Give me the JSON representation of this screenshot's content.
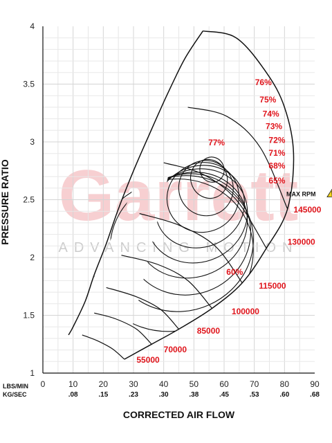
{
  "chart_data": {
    "type": "compressor_map",
    "xlabel": "CORRECTED AIR FLOW",
    "ylabel": "PRESSURE RATIO",
    "xlim": [
      0,
      90
    ],
    "ylim": [
      1,
      4
    ],
    "x_ticks_lbs_min": [
      "0",
      "10",
      "20",
      "30",
      "40",
      "50",
      "60",
      "70",
      "80",
      "90"
    ],
    "x_ticks_kg_sec": [
      ".08",
      ".15",
      ".23",
      ".30",
      ".38",
      ".45",
      ".53",
      ".60",
      ".68"
    ],
    "y_ticks": [
      "1",
      "1.5",
      "2",
      "2.5",
      "3",
      "3.5",
      "4"
    ],
    "unit_primary": "LBS/MIN",
    "unit_secondary": "KG/SEC",
    "watermark": {
      "brand": "Garrett",
      "tagline": "ADVANCING MOTION"
    },
    "max_rpm_label": "MAX RPM",
    "grid": true,
    "surge_line": [
      [
        8.5,
        1.33
      ],
      [
        10,
        1.4
      ],
      [
        14,
        1.62
      ],
      [
        17,
        1.85
      ],
      [
        21,
        2.12
      ],
      [
        25,
        2.42
      ],
      [
        30,
        2.75
      ],
      [
        35,
        3.05
      ],
      [
        41,
        3.4
      ],
      [
        47,
        3.72
      ],
      [
        53,
        3.96
      ]
    ],
    "speed_lines": [
      {
        "rpm": 55000,
        "label": "55000",
        "points": [
          [
            13,
            1.33
          ],
          [
            18,
            1.28
          ],
          [
            23,
            1.21
          ],
          [
            27,
            1.12
          ]
        ]
      },
      {
        "rpm": 70000,
        "label": "70000",
        "points": [
          [
            17,
            1.52
          ],
          [
            24,
            1.47
          ],
          [
            31,
            1.38
          ],
          [
            36,
            1.25
          ]
        ]
      },
      {
        "rpm": 85000,
        "label": "85000",
        "points": [
          [
            21,
            1.74
          ],
          [
            31,
            1.66
          ],
          [
            39,
            1.55
          ],
          [
            45,
            1.38
          ]
        ]
      },
      {
        "rpm": 100000,
        "label": "100000",
        "points": [
          [
            26,
            2.02
          ],
          [
            38,
            1.94
          ],
          [
            48,
            1.8
          ],
          [
            56,
            1.56
          ]
        ]
      },
      {
        "rpm": 115000,
        "label": "115000",
        "points": [
          [
            32,
            2.38
          ],
          [
            45,
            2.28
          ],
          [
            57,
            2.1
          ],
          [
            66,
            1.78
          ]
        ]
      },
      {
        "rpm": 130000,
        "label": "130000",
        "points": [
          [
            40,
            2.82
          ],
          [
            53,
            2.72
          ],
          [
            64,
            2.5
          ],
          [
            74,
            2.08
          ]
        ]
      },
      {
        "rpm": 145000,
        "label": "145000",
        "points": [
          [
            48,
            3.3
          ],
          [
            61,
            3.22
          ],
          [
            72,
            2.95
          ],
          [
            81,
            2.42
          ]
        ]
      }
    ],
    "choke_line": [
      [
        27,
        1.12
      ],
      [
        36,
        1.25
      ],
      [
        45,
        1.38
      ],
      [
        56,
        1.56
      ],
      [
        66,
        1.78
      ],
      [
        74,
        2.08
      ],
      [
        81,
        2.42
      ],
      [
        83,
        2.9
      ],
      [
        80,
        3.3
      ],
      [
        74,
        3.6
      ],
      [
        64,
        3.9
      ],
      [
        53,
        3.96
      ]
    ],
    "efficiency_islands": [
      {
        "label": "60%",
        "center": [
          43,
          2.02
        ],
        "rx": 27,
        "ry": 0.65,
        "label_pos": [
          63.5,
          1.85
        ]
      },
      {
        "label": "65%",
        "center": [
          46,
          2.12
        ],
        "rx": 24,
        "ry": 0.58,
        "label_pos": [
          77.5,
          2.64
        ]
      },
      {
        "label": "68%",
        "center": [
          48,
          2.2
        ],
        "rx": 21,
        "ry": 0.52,
        "label_pos": [
          77.5,
          2.77
        ]
      },
      {
        "label": "71%",
        "center": [
          49,
          2.28
        ],
        "rx": 19,
        "ry": 0.45,
        "label_pos": [
          77.5,
          2.88
        ]
      },
      {
        "label": "72%",
        "center": [
          51,
          2.36
        ],
        "rx": 17,
        "ry": 0.4,
        "label_pos": [
          77.5,
          2.99
        ]
      },
      {
        "label": "73%",
        "center": [
          52,
          2.44
        ],
        "rx": 15,
        "ry": 0.35,
        "label_pos": [
          76.5,
          3.11
        ]
      },
      {
        "label": "74%",
        "center": [
          53,
          2.52
        ],
        "rx": 12,
        "ry": 0.3,
        "label_pos": [
          75.5,
          3.22
        ]
      },
      {
        "label": "75%",
        "center": [
          54,
          2.6
        ],
        "rx": 9,
        "ry": 0.24,
        "label_pos": [
          74.5,
          3.34
        ]
      },
      {
        "label": "76%",
        "center": [
          55,
          2.68
        ],
        "rx": 6,
        "ry": 0.17,
        "label_pos": [
          73,
          3.49
        ]
      },
      {
        "label": "77%",
        "center": [
          56,
          2.76
        ],
        "rx": 4,
        "ry": 0.11,
        "label_pos": [
          57.5,
          2.97
        ]
      }
    ],
    "speed_label_positions": {
      "55000": [
        31,
        1.09
      ],
      "70000": [
        40,
        1.18
      ],
      "85000": [
        51,
        1.34
      ],
      "100000": [
        62.5,
        1.51
      ],
      "115000": [
        71.5,
        1.73
      ],
      "130000": [
        81,
        2.11
      ],
      "145000": [
        83,
        2.39
      ]
    }
  }
}
